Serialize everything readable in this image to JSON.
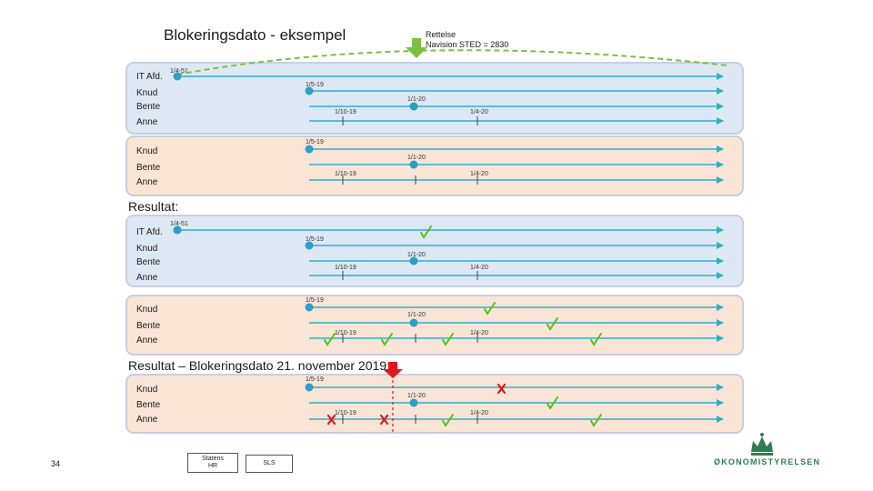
{
  "title": "Blokeringsdato - eksempel",
  "note": {
    "line1": "Rettelse",
    "line2": "Navision STED = 2830"
  },
  "labels": {
    "it": "IT Afd.",
    "knud": "Knud",
    "bente": "Bente",
    "anne": "Anne"
  },
  "dates": {
    "d51": "1/4-51",
    "d1519": "1/5-19",
    "d120": "1/1-20",
    "d11019": "1/10-19",
    "d1420": "1/4-20"
  },
  "sections": {
    "resultat": "Resultat:",
    "resultat_bd": "Resultat – Blokeringsdato 21. november 2019:"
  },
  "page_number": "34",
  "boxes": {
    "statens_hr_1": "Statens",
    "statens_hr_2": "HR",
    "sls": "SLS"
  },
  "logo": "ØKONOMISTYRELSEN",
  "colors": {
    "line": "#2bb0cf",
    "dot": "#2b9fc4",
    "check": "#55c21a",
    "cross": "#e0161c",
    "arrow": "#7bc043",
    "blue": "#dde8f4",
    "peach": "#f9e4d6",
    "logo": "#2e7d4f"
  }
}
